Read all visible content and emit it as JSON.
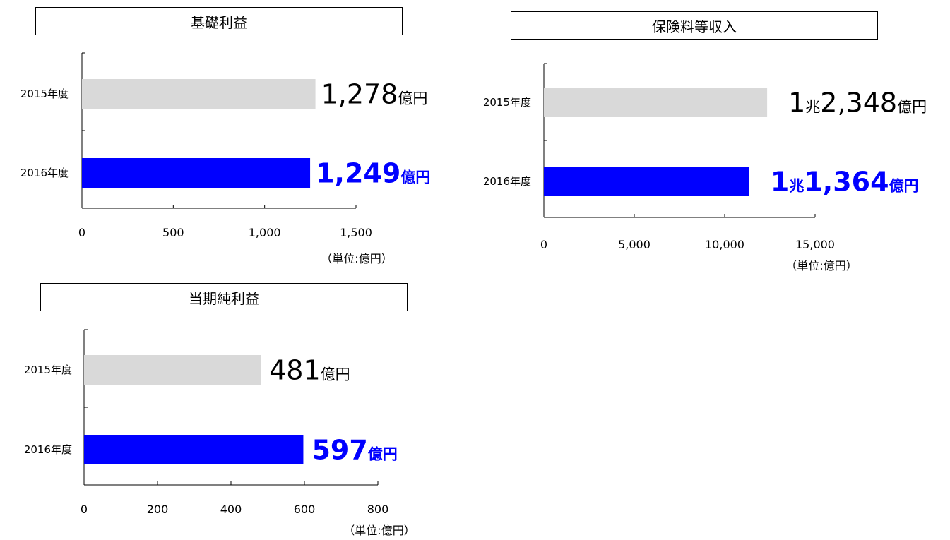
{
  "chart_data": [
    {
      "id": "kiso",
      "type": "bar",
      "orientation": "horizontal",
      "title": "基礎利益",
      "categories": [
        "2015年度",
        "2016年度"
      ],
      "values": [
        1278,
        1249
      ],
      "xlim": [
        0,
        1500
      ],
      "xticks": [
        0,
        500,
        1000,
        1500
      ],
      "xtick_labels": [
        "0",
        "500",
        "1,000",
        "1,500"
      ],
      "unit_label": "（単位:億円）",
      "data_labels": [
        {
          "parts": [
            {
              "text": "1,278",
              "size": "big"
            },
            {
              "text": "億円",
              "size": "small"
            }
          ]
        },
        {
          "parts": [
            {
              "text": "1,249",
              "size": "big"
            },
            {
              "text": "億円",
              "size": "small"
            }
          ]
        }
      ]
    },
    {
      "id": "hoken",
      "type": "bar",
      "orientation": "horizontal",
      "title": "保険料等収入",
      "categories": [
        "2015年度",
        "2016年度"
      ],
      "values": [
        12348,
        11364
      ],
      "xlim": [
        0,
        15000
      ],
      "xticks": [
        0,
        5000,
        10000,
        15000
      ],
      "xtick_labels": [
        "0",
        "5,000",
        "10,000",
        "15,000"
      ],
      "unit_label": "（単位:億円）",
      "data_labels": [
        {
          "parts": [
            {
              "text": "1",
              "size": "big"
            },
            {
              "text": "兆",
              "size": "small"
            },
            {
              "text": "2,348",
              "size": "big"
            },
            {
              "text": "億円",
              "size": "small"
            }
          ]
        },
        {
          "parts": [
            {
              "text": "1",
              "size": "big"
            },
            {
              "text": "兆",
              "size": "small"
            },
            {
              "text": "1,364",
              "size": "big"
            },
            {
              "text": "億円",
              "size": "small"
            }
          ]
        }
      ]
    },
    {
      "id": "junrieki",
      "type": "bar",
      "orientation": "horizontal",
      "title": "当期純利益",
      "categories": [
        "2015年度",
        "2016年度"
      ],
      "values": [
        481,
        597
      ],
      "xlim": [
        0,
        800
      ],
      "xticks": [
        0,
        200,
        400,
        600,
        800
      ],
      "xtick_labels": [
        "0",
        "200",
        "400",
        "600",
        "800"
      ],
      "unit_label": "（単位:億円）",
      "data_labels": [
        {
          "parts": [
            {
              "text": "481",
              "size": "big"
            },
            {
              "text": "億円",
              "size": "small"
            }
          ]
        },
        {
          "parts": [
            {
              "text": "597",
              "size": "big"
            },
            {
              "text": "億円",
              "size": "small"
            }
          ]
        }
      ]
    }
  ],
  "colors": {
    "bar_2015": "#d9d9d9",
    "bar_2016": "#0000ff",
    "label_2015": "#000000",
    "label_2016": "#0000ff"
  }
}
